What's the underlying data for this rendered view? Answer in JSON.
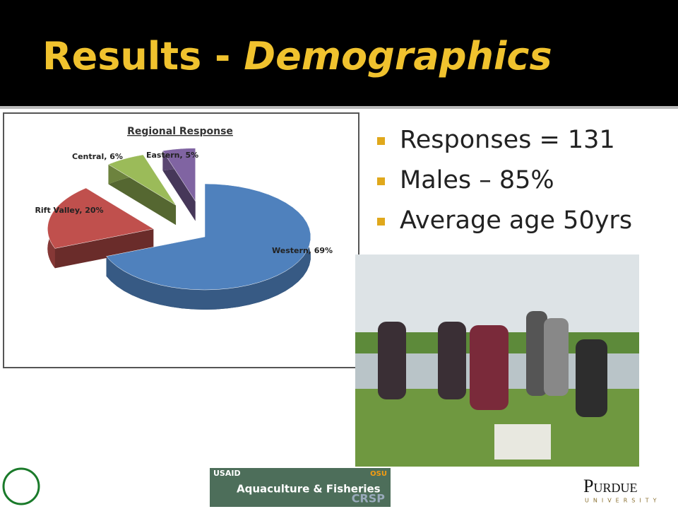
{
  "slide_title": {
    "plain": "Results -",
    "emphasis": "Demographics"
  },
  "bullets": [
    "Responses = 131",
    "Males – 85%",
    "Average age 50yrs"
  ],
  "chart_data": {
    "type": "pie",
    "title": "Regional Response",
    "categories": [
      "Western",
      "Rift Valley",
      "Central",
      "Eastern"
    ],
    "values": [
      69,
      20,
      6,
      5
    ],
    "value_labels": [
      "Western, 69%",
      "Rift Valley, 20%",
      "Central, 6%",
      "Eastern, 5%"
    ],
    "colors": [
      "#4f81bd",
      "#c0504d",
      "#9bbb59",
      "#8064a2"
    ]
  },
  "footer": {
    "usaid": "USAID",
    "osu": "OSU",
    "program": "Aquaculture & Fisheries",
    "crsp": "CRSP",
    "purdue": "Purdue",
    "university": "UNIVERSITY"
  }
}
